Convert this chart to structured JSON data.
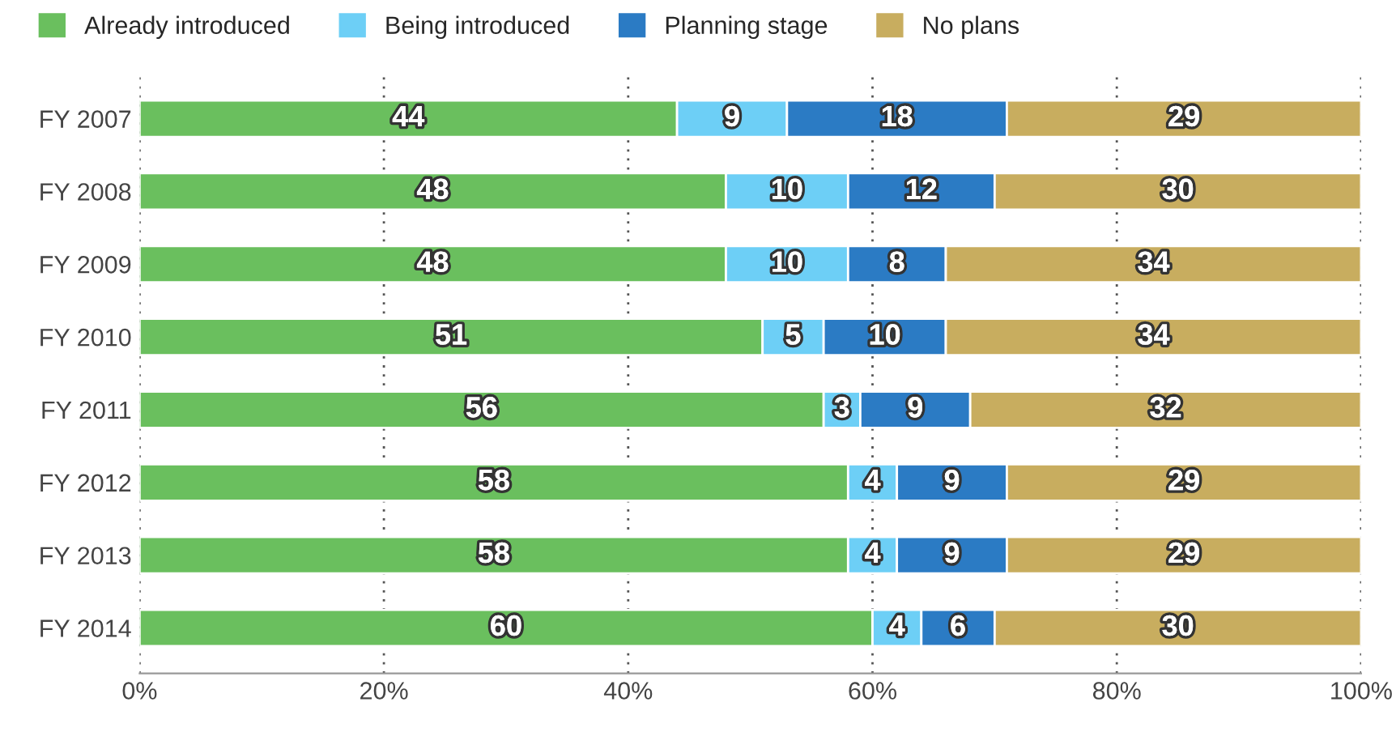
{
  "chart_data": {
    "type": "bar",
    "orientation": "horizontal",
    "stacked": true,
    "categories": [
      "FY 2007",
      "FY 2008",
      "FY 2009",
      "FY 2010",
      "FY 2011",
      "FY 2012",
      "FY 2013",
      "FY 2014"
    ],
    "series": [
      {
        "name": "Already introduced",
        "color": "#6abf5e",
        "values": [
          44,
          48,
          48,
          51,
          56,
          58,
          58,
          60
        ]
      },
      {
        "name": "Being introduced",
        "color": "#6dcff6",
        "values": [
          9,
          10,
          10,
          5,
          3,
          4,
          4,
          4
        ]
      },
      {
        "name": "Planning stage",
        "color": "#2b7bc4",
        "values": [
          18,
          12,
          8,
          10,
          9,
          9,
          9,
          6
        ]
      },
      {
        "name": "No plans",
        "color": "#c8ad5f",
        "values": [
          29,
          30,
          34,
          34,
          32,
          29,
          29,
          30
        ]
      }
    ],
    "xlim": [
      0,
      100
    ],
    "xticks": [
      {
        "value": 0,
        "label": "0%"
      },
      {
        "value": 20,
        "label": "20%"
      },
      {
        "value": 40,
        "label": "40%"
      },
      {
        "value": 60,
        "label": "60%"
      },
      {
        "value": 80,
        "label": "80%"
      },
      {
        "value": 100,
        "label": "100%"
      }
    ],
    "grid": "x",
    "legend": "top left",
    "data_labels": true
  }
}
